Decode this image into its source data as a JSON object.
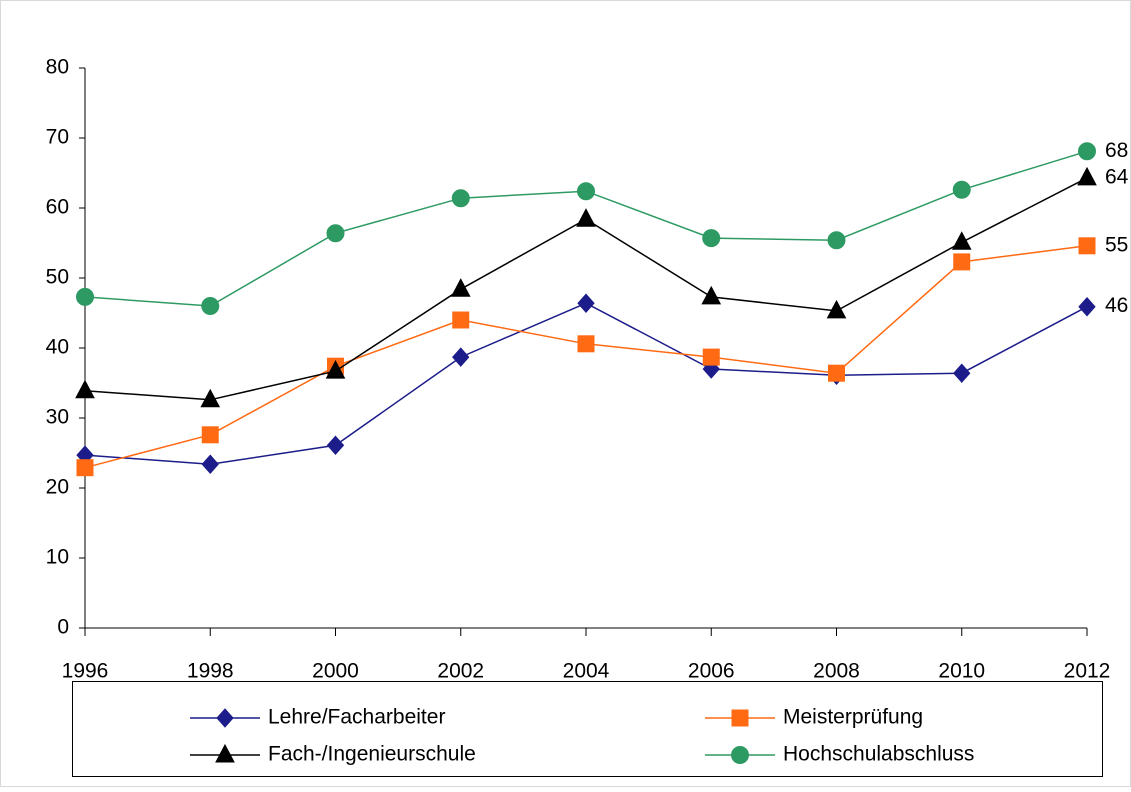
{
  "chart_data": {
    "type": "line",
    "x": [
      1996,
      1998,
      2000,
      2002,
      2004,
      2006,
      2008,
      2010,
      2012
    ],
    "xlim": [
      1996,
      2012
    ],
    "xticks": [
      1996,
      1998,
      2000,
      2002,
      2004,
      2006,
      2008,
      2010,
      2012
    ],
    "ylim": [
      0,
      80
    ],
    "yticks": [
      0,
      10,
      20,
      30,
      40,
      50,
      60,
      70,
      80
    ],
    "grid": false,
    "legend": "bottom",
    "series": [
      {
        "name": "Lehre/Facharbeiter",
        "color": "#1c1c8a",
        "marker": "diamond",
        "values": [
          24.7,
          23.4,
          26.1,
          38.7,
          46.4,
          37.0,
          36.1,
          36.4,
          45.9
        ],
        "value_labels": [
          null,
          null,
          null,
          null,
          null,
          null,
          null,
          null,
          "46"
        ]
      },
      {
        "name": "Meisterprüfung",
        "color": "#ff6a13",
        "marker": "square",
        "values": [
          22.9,
          27.6,
          37.4,
          44.0,
          40.6,
          38.7,
          36.4,
          52.3,
          54.6
        ],
        "value_labels": [
          null,
          null,
          null,
          null,
          null,
          null,
          null,
          null,
          "55"
        ]
      },
      {
        "name": "Fach-/Ingenieurschule",
        "color": "#000000",
        "marker": "triangle",
        "values": [
          33.9,
          32.6,
          36.7,
          48.4,
          58.4,
          47.3,
          45.3,
          55.1,
          64.3
        ],
        "value_labels": [
          null,
          null,
          null,
          null,
          null,
          null,
          null,
          null,
          "64"
        ]
      },
      {
        "name": "Hochschulabschluss",
        "color": "#2e9a63",
        "marker": "circle",
        "values": [
          47.3,
          46.0,
          56.4,
          61.4,
          62.4,
          55.7,
          55.4,
          62.6,
          68.1
        ],
        "value_labels": [
          null,
          null,
          null,
          null,
          null,
          null,
          null,
          null,
          "68"
        ]
      }
    ]
  }
}
